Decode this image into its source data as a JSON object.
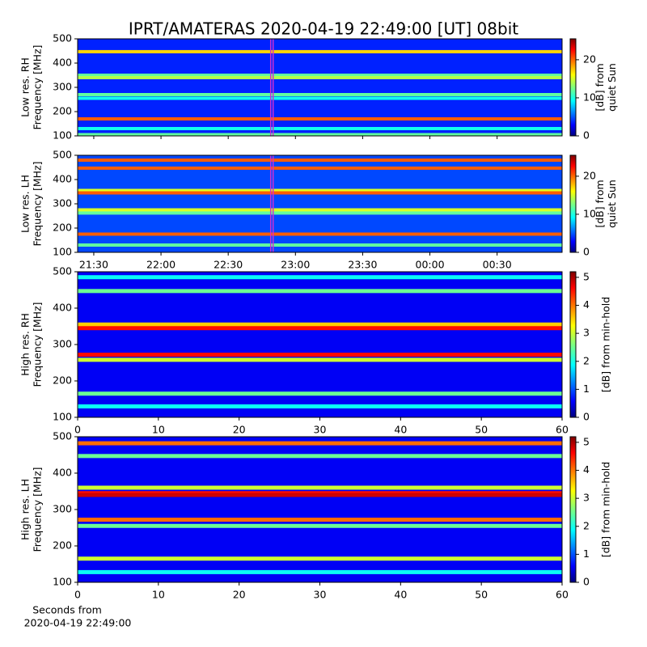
{
  "title": "IPRT/AMATERAS 2020-04-19 22:49:00 [UT]   08bit",
  "chart_data": [
    {
      "type": "heatmap",
      "ylabel": [
        "Low res. RH",
        "Frequency [MHz]"
      ],
      "xlim": [
        22.8,
        239
      ],
      "xticks": [
        30,
        60,
        90,
        120,
        150,
        180,
        210
      ],
      "ylim": [
        100,
        500
      ],
      "yticks": [
        100,
        200,
        300,
        400,
        500
      ],
      "marker_x": 109.5,
      "marker_color": "#d030d0",
      "background": 4,
      "bands": {
        "frequency": [
          447,
          350,
          340,
          270,
          255,
          170,
          130,
          105
        ],
        "values": [
          17,
          12,
          14,
          12,
          10,
          20,
          10,
          12
        ]
      },
      "colorbar": {
        "label": [
          "[dB] from",
          "quiet Sun"
        ],
        "lim": [
          0,
          25.5
        ],
        "ticks": [
          0,
          10,
          20
        ]
      }
    },
    {
      "type": "heatmap",
      "ylabel": [
        "Low res. LH",
        "Frequency [MHz]"
      ],
      "xlim": [
        22.8,
        239
      ],
      "xticks": [
        {
          "value": 30,
          "label": "21:30"
        },
        {
          "value": 60,
          "label": "22:00"
        },
        {
          "value": 90,
          "label": "22:30"
        },
        {
          "value": 120,
          "label": "23:00"
        },
        {
          "value": 150,
          "label": "23:30"
        },
        {
          "value": 180,
          "label": "00:00"
        },
        {
          "value": 210,
          "label": "00:30"
        }
      ],
      "ylim": [
        100,
        500
      ],
      "yticks": [
        100,
        200,
        300,
        400,
        500
      ],
      "marker_x": 109.5,
      "marker_color": "#d030d0",
      "background": 5,
      "bands": {
        "frequency": [
          480,
          447,
          355,
          345,
          275,
          262,
          175,
          130
        ],
        "values": [
          20,
          20,
          15,
          20,
          15,
          12,
          20,
          12
        ]
      },
      "colorbar": {
        "label": [
          "[dB] from",
          "quiet Sun"
        ],
        "lim": [
          0,
          25.5
        ],
        "ticks": [
          0,
          10,
          20
        ]
      }
    },
    {
      "type": "heatmap",
      "ylabel": [
        "High res. RH",
        "Frequency [MHz]"
      ],
      "xlim": [
        0,
        60
      ],
      "xticks": [
        0,
        10,
        20,
        30,
        40,
        50,
        60
      ],
      "ylim": [
        100,
        500
      ],
      "yticks": [
        100,
        200,
        300,
        400,
        500
      ],
      "background": 0.6,
      "bands": {
        "frequency": [
          485,
          447,
          355,
          345,
          272,
          258,
          165,
          130
        ],
        "values": [
          2,
          2.5,
          3.5,
          4.5,
          4.5,
          3,
          2.5,
          2
        ]
      },
      "colorbar": {
        "label": [
          "[dB] from min-hold"
        ],
        "lim": [
          0,
          5.2
        ],
        "ticks": [
          0,
          1,
          2,
          3,
          4,
          5
        ]
      }
    },
    {
      "type": "heatmap",
      "ylabel": [
        "High res. LH",
        "Frequency [MHz]"
      ],
      "xlabel": [
        "Seconds from",
        "2020-04-19 22:49:00"
      ],
      "xlim": [
        0,
        60
      ],
      "xticks": [
        0,
        10,
        20,
        30,
        40,
        50,
        60
      ],
      "ylim": [
        100,
        500
      ],
      "yticks": [
        100,
        200,
        300,
        400,
        500
      ],
      "background": 0.6,
      "bands": {
        "frequency": [
          482,
          447,
          360,
          345,
          340,
          272,
          255,
          165,
          128
        ],
        "values": [
          4,
          2.5,
          3,
          4.5,
          4.8,
          4,
          2.5,
          3,
          2
        ]
      },
      "colorbar": {
        "label": [
          "[dB] from min-hold"
        ],
        "lim": [
          0,
          5.2
        ],
        "ticks": [
          0,
          1,
          2,
          3,
          4,
          5
        ]
      }
    }
  ]
}
